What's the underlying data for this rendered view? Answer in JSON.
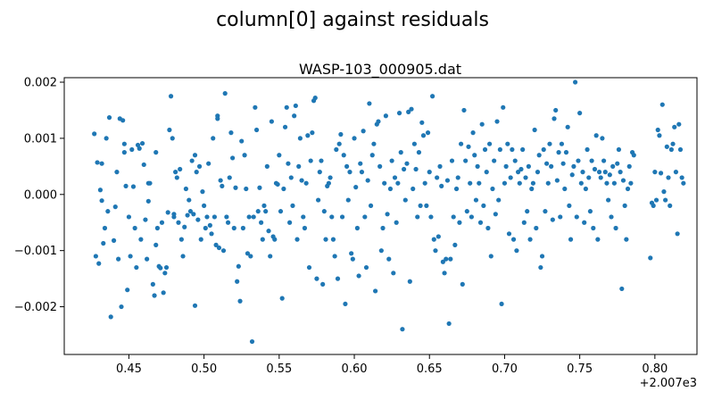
{
  "figure": {
    "suptitle": "column[0] against residuals"
  },
  "chart_data": {
    "type": "scatter",
    "title": "WASP-103_000905.dat",
    "xlabel": "",
    "ylabel": "",
    "x_offset_label": "+2.007e3",
    "xlim": [
      0.407,
      0.828
    ],
    "ylim": [
      -0.00285,
      0.00208
    ],
    "x_ticks": [
      0.45,
      0.5,
      0.55,
      0.6,
      0.65,
      0.7,
      0.75,
      0.8
    ],
    "x_tick_labels": [
      "0.45",
      "0.50",
      "0.55",
      "0.60",
      "0.65",
      "0.70",
      "0.75",
      "0.80"
    ],
    "y_ticks": [
      -0.002,
      -0.001,
      0.0,
      0.001,
      0.002
    ],
    "y_tick_labels": [
      "−0.002",
      "−0.001",
      "0.000",
      "0.001",
      "0.002"
    ],
    "grid": false,
    "marker_color": "#1f77b4",
    "points": [
      [
        0.427,
        0.00108
      ],
      [
        0.428,
        -0.0011
      ],
      [
        0.429,
        0.00057
      ],
      [
        0.43,
        -0.00123
      ],
      [
        0.431,
        8e-05
      ],
      [
        0.432,
        -0.00011
      ],
      [
        0.432,
        0.00055
      ],
      [
        0.433,
        -0.00087
      ],
      [
        0.434,
        -0.0006
      ],
      [
        0.435,
        0.001
      ],
      [
        0.436,
        -0.0003
      ],
      [
        0.437,
        0.00137
      ],
      [
        0.438,
        -0.00218
      ],
      [
        0.44,
        -0.00082
      ],
      [
        0.441,
        -0.00022
      ],
      [
        0.442,
        0.0004
      ],
      [
        0.443,
        -0.00115
      ],
      [
        0.444,
        0.00135
      ],
      [
        0.445,
        -0.002
      ],
      [
        0.446,
        0.00132
      ],
      [
        0.447,
        0.0009
      ],
      [
        0.447,
        0.00075
      ],
      [
        0.448,
        0.00015
      ],
      [
        0.449,
        -0.0017
      ],
      [
        0.45,
        -0.0004
      ],
      [
        0.451,
        -0.0011
      ],
      [
        0.452,
        0.0008
      ],
      [
        0.453,
        0.00014
      ],
      [
        0.454,
        -0.0006
      ],
      [
        0.455,
        -0.0013
      ],
      [
        0.456,
        0.00088
      ],
      [
        0.457,
        0.00082
      ],
      [
        0.458,
        -0.0008
      ],
      [
        0.459,
        0.00091
      ],
      [
        0.46,
        0.00053
      ],
      [
        0.461,
        -0.00045
      ],
      [
        0.462,
        -0.00115
      ],
      [
        0.463,
        -0.00012
      ],
      [
        0.463,
        0.0002
      ],
      [
        0.464,
        0.0002
      ],
      [
        0.466,
        -0.0016
      ],
      [
        0.467,
        -0.0018
      ],
      [
        0.468,
        0.00075
      ],
      [
        0.468,
        -0.0009
      ],
      [
        0.469,
        -0.0006
      ],
      [
        0.47,
        -0.00128
      ],
      [
        0.471,
        -0.00131
      ],
      [
        0.472,
        -0.0005
      ],
      [
        0.473,
        -0.00175
      ],
      [
        0.474,
        -0.0014
      ],
      [
        0.475,
        -0.0013
      ],
      [
        0.476,
        -0.00032
      ],
      [
        0.477,
        0.00115
      ],
      [
        0.478,
        0.00175
      ],
      [
        0.479,
        0.001
      ],
      [
        0.48,
        -0.0004
      ],
      [
        0.48,
        -0.00035
      ],
      [
        0.481,
        0.0004
      ],
      [
        0.482,
        0.0003
      ],
      [
        0.483,
        -0.0005
      ],
      [
        0.484,
        0.00045
      ],
      [
        0.485,
        -0.0008
      ],
      [
        0.486,
        -0.0011
      ],
      [
        0.487,
        -0.00058
      ],
      [
        0.488,
        0.0001
      ],
      [
        0.489,
        -0.00037
      ],
      [
        0.49,
        -0.0001
      ],
      [
        0.491,
        -0.0003
      ],
      [
        0.492,
        0.0006
      ],
      [
        0.493,
        -0.00035
      ],
      [
        0.494,
        -0.00198
      ],
      [
        0.494,
        0.0007
      ],
      [
        0.495,
        0.0004
      ],
      [
        0.496,
        -0.00045
      ],
      [
        0.497,
        0.0005
      ],
      [
        0.498,
        -0.0008
      ],
      [
        0.499,
        5e-05
      ],
      [
        0.5,
        -0.0002
      ],
      [
        0.501,
        -0.0006
      ],
      [
        0.502,
        -0.0004
      ],
      [
        0.503,
        0.00055
      ],
      [
        0.504,
        -0.00055
      ],
      [
        0.505,
        -0.0007
      ],
      [
        0.506,
        0.001
      ],
      [
        0.507,
        -0.0004
      ],
      [
        0.508,
        -0.0009
      ],
      [
        0.509,
        0.0014
      ],
      [
        0.509,
        0.00135
      ],
      [
        0.51,
        -0.00095
      ],
      [
        0.511,
        0.00025
      ],
      [
        0.512,
        0.00015
      ],
      [
        0.513,
        -0.001
      ],
      [
        0.514,
        0.0018
      ],
      [
        0.515,
        -0.0004
      ],
      [
        0.516,
        -0.0005
      ],
      [
        0.517,
        0.0003
      ],
      [
        0.518,
        0.0011
      ],
      [
        0.519,
        0.00065
      ],
      [
        0.52,
        -0.0006
      ],
      [
        0.521,
        0.00012
      ],
      [
        0.522,
        -0.00155
      ],
      [
        0.523,
        -0.00128
      ],
      [
        0.524,
        -0.0019
      ],
      [
        0.525,
        0.00095
      ],
      [
        0.526,
        -0.0006
      ],
      [
        0.527,
        0.0007
      ],
      [
        0.528,
        0.0001
      ],
      [
        0.529,
        -0.00105
      ],
      [
        0.53,
        -0.0004
      ],
      [
        0.531,
        -0.0011
      ],
      [
        0.532,
        -0.00262
      ],
      [
        0.533,
        -0.0004
      ],
      [
        0.534,
        0.00155
      ],
      [
        0.535,
        0.00115
      ],
      [
        0.536,
        -0.0003
      ],
      [
        0.537,
        0.00012
      ],
      [
        0.538,
        -0.0005
      ],
      [
        0.539,
        -0.0008
      ],
      [
        0.54,
        -0.0002
      ],
      [
        0.541,
        -0.0003
      ],
      [
        0.542,
        0.0005
      ],
      [
        0.543,
        -0.00065
      ],
      [
        0.544,
        -0.0011
      ],
      [
        0.545,
        0.0013
      ],
      [
        0.546,
        -0.00075
      ],
      [
        0.547,
        -0.0008
      ],
      [
        0.548,
        0.0002
      ],
      [
        0.549,
        0.00018
      ],
      [
        0.55,
        0.0007
      ],
      [
        0.551,
        -0.0003
      ],
      [
        0.552,
        -0.00185
      ],
      [
        0.553,
        0.0001
      ],
      [
        0.554,
        0.0012
      ],
      [
        0.555,
        0.00155
      ],
      [
        0.556,
        0.00055
      ],
      [
        0.557,
        -0.0005
      ],
      [
        0.558,
        0.0003
      ],
      [
        0.559,
        -0.0002
      ],
      [
        0.56,
        0.0014
      ],
      [
        0.561,
        0.00158
      ],
      [
        0.562,
        -0.0008
      ],
      [
        0.563,
        0.0005
      ],
      [
        0.564,
        0.001
      ],
      [
        0.565,
        0.00025
      ],
      [
        0.566,
        -0.0004
      ],
      [
        0.567,
        -0.0006
      ],
      [
        0.568,
        0.0002
      ],
      [
        0.569,
        0.00105
      ],
      [
        0.57,
        -0.0013
      ],
      [
        0.571,
        0.0006
      ],
      [
        0.572,
        0.0011
      ],
      [
        0.573,
        0.00167
      ],
      [
        0.574,
        0.00172
      ],
      [
        0.575,
        -0.0015
      ],
      [
        0.576,
        -0.0001
      ],
      [
        0.577,
        0.0004
      ],
      [
        0.578,
        0.0006
      ],
      [
        0.579,
        -0.0016
      ],
      [
        0.58,
        -0.0003
      ],
      [
        0.581,
        -0.0008
      ],
      [
        0.582,
        0.00015
      ],
      [
        0.583,
        0.0002
      ],
      [
        0.584,
        0.0003
      ],
      [
        0.585,
        -0.0004
      ],
      [
        0.586,
        -0.0008
      ],
      [
        0.587,
        -0.0011
      ],
      [
        0.588,
        0.0008
      ],
      [
        0.589,
        -0.0015
      ],
      [
        0.59,
        0.0009
      ],
      [
        0.591,
        0.00107
      ],
      [
        0.592,
        -0.0004
      ],
      [
        0.593,
        0.0007
      ],
      [
        0.594,
        -0.00195
      ],
      [
        0.595,
        0.0005
      ],
      [
        0.596,
        -0.0001
      ],
      [
        0.597,
        0.0004
      ],
      [
        0.598,
        -0.00105
      ],
      [
        0.599,
        -0.00115
      ],
      [
        0.6,
        0.001
      ],
      [
        0.601,
        0.00013
      ],
      [
        0.602,
        -0.0006
      ],
      [
        0.603,
        -0.00145
      ],
      [
        0.604,
        0.00055
      ],
      [
        0.605,
        0.0004
      ],
      [
        0.606,
        0.00113
      ],
      [
        0.607,
        -0.0004
      ],
      [
        0.608,
        -0.0013
      ],
      [
        0.609,
        0.00025
      ],
      [
        0.61,
        0.00162
      ],
      [
        0.611,
        -0.0002
      ],
      [
        0.612,
        0.0007
      ],
      [
        0.613,
        0.0009
      ],
      [
        0.614,
        -0.00172
      ],
      [
        0.615,
        0.00125
      ],
      [
        0.616,
        0.0013
      ],
      [
        0.617,
        0.0005
      ],
      [
        0.618,
        -0.001
      ],
      [
        0.619,
        -0.0006
      ],
      [
        0.62,
        0.0002
      ],
      [
        0.621,
        0.0014
      ],
      [
        0.622,
        -0.00035
      ],
      [
        0.623,
        -0.00115
      ],
      [
        0.624,
        0.0001
      ],
      [
        0.625,
        0.0006
      ],
      [
        0.626,
        -0.0014
      ],
      [
        0.627,
        0.0003
      ],
      [
        0.628,
        -0.0005
      ],
      [
        0.629,
        0.0002
      ],
      [
        0.63,
        0.00145
      ],
      [
        0.631,
        0.00075
      ],
      [
        0.632,
        -0.0024
      ],
      [
        0.633,
        0.00045
      ],
      [
        0.634,
        -0.0001
      ],
      [
        0.635,
        0.00055
      ],
      [
        0.636,
        0.00147
      ],
      [
        0.637,
        -0.00155
      ],
      [
        0.638,
        0.00152
      ],
      [
        0.639,
        0.0001
      ],
      [
        0.64,
        0.0009
      ],
      [
        0.641,
        0.00045
      ],
      [
        0.642,
        -0.0004
      ],
      [
        0.643,
        0.00075
      ],
      [
        0.644,
        -0.0002
      ],
      [
        0.645,
        0.00128
      ],
      [
        0.646,
        0.00105
      ],
      [
        0.647,
        0.0002
      ],
      [
        0.648,
        -0.0002
      ],
      [
        0.649,
        0.0011
      ],
      [
        0.65,
        0.0004
      ],
      [
        0.651,
        -0.0004
      ],
      [
        0.652,
        0.00175
      ],
      [
        0.653,
        -0.0008
      ],
      [
        0.654,
        -0.001
      ],
      [
        0.655,
        0.0003
      ],
      [
        0.656,
        -0.00075
      ],
      [
        0.657,
        0.0005
      ],
      [
        0.658,
        0.00015
      ],
      [
        0.659,
        -0.0012
      ],
      [
        0.66,
        -0.0014
      ],
      [
        0.661,
        -0.00115
      ],
      [
        0.662,
        0.00025
      ],
      [
        0.663,
        -0.0023
      ],
      [
        0.664,
        -0.00115
      ],
      [
        0.665,
        0.0006
      ],
      [
        0.666,
        -0.0004
      ],
      [
        0.667,
        -0.0009
      ],
      [
        0.668,
        0.0001
      ],
      [
        0.669,
        0.0003
      ],
      [
        0.67,
        -0.0005
      ],
      [
        0.671,
        0.0009
      ],
      [
        0.672,
        -0.0016
      ],
      [
        0.673,
        0.0015
      ],
      [
        0.674,
        0.0006
      ],
      [
        0.675,
        -0.0003
      ],
      [
        0.676,
        0.00085
      ],
      [
        0.677,
        0.0002
      ],
      [
        0.678,
        -0.0004
      ],
      [
        0.679,
        0.0011
      ],
      [
        0.68,
        0.0007
      ],
      [
        0.681,
        -0.0001
      ],
      [
        0.682,
        0.0005
      ],
      [
        0.683,
        0.0002
      ],
      [
        0.684,
        -0.0005
      ],
      [
        0.685,
        0.00125
      ],
      [
        0.686,
        -0.0002
      ],
      [
        0.687,
        0.0008
      ],
      [
        0.688,
        0.0004
      ],
      [
        0.689,
        -0.0006
      ],
      [
        0.69,
        0.0009
      ],
      [
        0.691,
        -0.0011
      ],
      [
        0.692,
        0.0001
      ],
      [
        0.693,
        0.0006
      ],
      [
        0.694,
        -0.00035
      ],
      [
        0.695,
        0.0013
      ],
      [
        0.696,
        -0.0001
      ],
      [
        0.697,
        0.0008
      ],
      [
        0.698,
        -0.00195
      ],
      [
        0.699,
        0.00155
      ],
      [
        0.7,
        0.0002
      ],
      [
        0.701,
        0.0005
      ],
      [
        0.702,
        0.0009
      ],
      [
        0.703,
        -0.0007
      ],
      [
        0.704,
        0.0003
      ],
      [
        0.705,
        0.0008
      ],
      [
        0.706,
        -0.0008
      ],
      [
        0.707,
        0.0006
      ],
      [
        0.708,
        -0.001
      ],
      [
        0.709,
        0.0004
      ],
      [
        0.71,
        0.0002
      ],
      [
        0.711,
        0.00045
      ],
      [
        0.712,
        0.0008
      ],
      [
        0.713,
        -0.0005
      ],
      [
        0.714,
        0.0003
      ],
      [
        0.715,
        -0.0003
      ],
      [
        0.716,
        0.0005
      ],
      [
        0.717,
        -0.0008
      ],
      [
        0.718,
        0.0001
      ],
      [
        0.719,
        0.0002
      ],
      [
        0.72,
        0.00115
      ],
      [
        0.721,
        -0.0006
      ],
      [
        0.722,
        0.0004
      ],
      [
        0.723,
        0.0007
      ],
      [
        0.724,
        -0.0013
      ],
      [
        0.725,
        -0.0011
      ],
      [
        0.726,
        0.0008
      ],
      [
        0.727,
        -0.0003
      ],
      [
        0.728,
        0.00055
      ],
      [
        0.729,
        0.0002
      ],
      [
        0.73,
        0.0009
      ],
      [
        0.731,
        0.0005
      ],
      [
        0.732,
        -0.00045
      ],
      [
        0.733,
        0.00135
      ],
      [
        0.734,
        0.0015
      ],
      [
        0.735,
        0.00025
      ],
      [
        0.736,
        0.00075
      ],
      [
        0.737,
        -0.0004
      ],
      [
        0.738,
        0.0009
      ],
      [
        0.739,
        0.00055
      ],
      [
        0.74,
        0.0001
      ],
      [
        0.741,
        0.00075
      ],
      [
        0.742,
        0.0012
      ],
      [
        0.743,
        -0.0002
      ],
      [
        0.744,
        -0.0008
      ],
      [
        0.745,
        0.00035
      ],
      [
        0.746,
        0.0005
      ],
      [
        0.747,
        0.002
      ],
      [
        0.748,
        -0.0004
      ],
      [
        0.749,
        0.0006
      ],
      [
        0.75,
        0.00145
      ],
      [
        0.751,
        0.0002
      ],
      [
        0.752,
        0.0004
      ],
      [
        0.753,
        -0.0005
      ],
      [
        0.754,
        0.0001
      ],
      [
        0.755,
        0.0008
      ],
      [
        0.756,
        0.0003
      ],
      [
        0.757,
        -0.0003
      ],
      [
        0.758,
        0.0006
      ],
      [
        0.759,
        -0.0006
      ],
      [
        0.76,
        0.00045
      ],
      [
        0.761,
        0.00105
      ],
      [
        0.762,
        -0.0008
      ],
      [
        0.763,
        0.0004
      ],
      [
        0.764,
        0.0003
      ],
      [
        0.765,
        0.001
      ],
      [
        0.766,
        0.0006
      ],
      [
        0.767,
        0.0004
      ],
      [
        0.768,
        0.0002
      ],
      [
        0.769,
        -0.0001
      ],
      [
        0.77,
        0.00035
      ],
      [
        0.771,
        -0.0004
      ],
      [
        0.772,
        0.0005
      ],
      [
        0.773,
        0.0002
      ],
      [
        0.774,
        -0.0006
      ],
      [
        0.775,
        0.00055
      ],
      [
        0.776,
        0.0008
      ],
      [
        0.777,
        0.0004
      ],
      [
        0.778,
        -0.00168
      ],
      [
        0.779,
        0.00025
      ],
      [
        0.78,
        -0.0002
      ],
      [
        0.781,
        -0.0008
      ],
      [
        0.782,
        0.0001
      ],
      [
        0.783,
        0.0005
      ],
      [
        0.784,
        0.0002
      ],
      [
        0.785,
        0.00075
      ],
      [
        0.786,
        0.0007
      ],
      [
        0.797,
        -0.00113
      ],
      [
        0.798,
        -0.00015
      ],
      [
        0.799,
        -0.0002
      ],
      [
        0.8,
        0.0004
      ],
      [
        0.801,
        -0.0001
      ],
      [
        0.802,
        0.00115
      ],
      [
        0.803,
        0.00105
      ],
      [
        0.804,
        0.00038
      ],
      [
        0.805,
        0.0016
      ],
      [
        0.806,
        5e-05
      ],
      [
        0.807,
        -0.0001
      ],
      [
        0.808,
        0.00085
      ],
      [
        0.809,
        0.0003
      ],
      [
        0.81,
        -0.0002
      ],
      [
        0.811,
        0.0008
      ],
      [
        0.812,
        0.0009
      ],
      [
        0.813,
        0.0012
      ],
      [
        0.814,
        0.0004
      ],
      [
        0.815,
        -0.0007
      ],
      [
        0.816,
        0.00125
      ],
      [
        0.817,
        0.0008
      ],
      [
        0.818,
        0.0003
      ],
      [
        0.819,
        0.0002
      ]
    ]
  }
}
